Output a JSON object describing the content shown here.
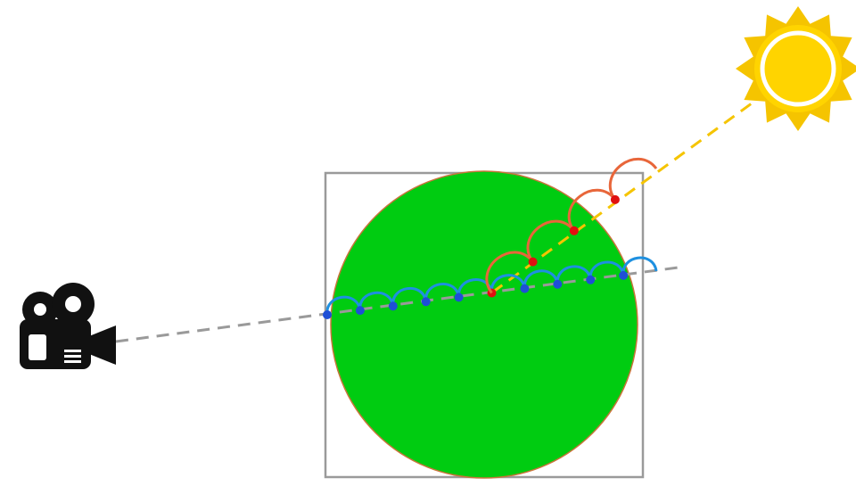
{
  "diagram": {
    "icons": {
      "camera": "video-camera-icon",
      "sun": "sun-icon"
    },
    "colors": {
      "background": "#ffffff",
      "bounding_box": "#9a9a9a",
      "sphere_fill": "#00cc11",
      "sphere_outline": "#c8743a",
      "camera_ray": "#9a9a9a",
      "light_ray": "#f5c400",
      "view_samples": "#1e4fd6",
      "view_arcs": "#1e90e0",
      "light_samples": "#e01010",
      "light_arcs": "#e8663a",
      "camera": "#111111",
      "sun_rays": "#f5c400",
      "sun_core": "#ffd400",
      "sun_ring": "#ffffff"
    },
    "view_sample_count": 10,
    "light_sample_count": 4
  }
}
